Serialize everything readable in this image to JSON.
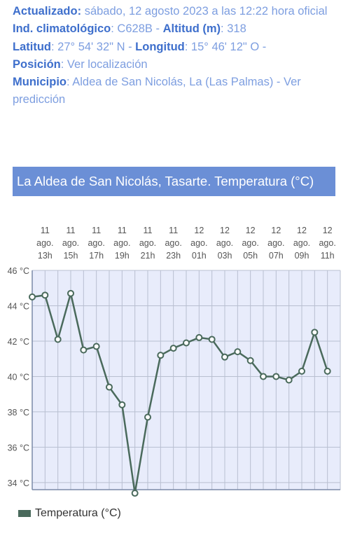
{
  "info": {
    "updated_label": "Actualizado:",
    "updated_value": "sábado, 12 agosto 2023 a las 12:22 hora oficial",
    "station_label": "Ind. climatológico",
    "station_value": ": C628B - ",
    "altitude_label": "Altitud (m)",
    "altitude_value": ": 318",
    "lat_label": "Latitud",
    "lat_value": ": 27° 54' 32\" N - ",
    "lon_label": "Longitud",
    "lon_value": ": 15° 46' 12\" O -",
    "position_label": "Posición",
    "position_value": ":   Ver localización",
    "municipality_label": "Municipio",
    "municipality_value": ":   Aldea de San Nicolás, La (Las Palmas) - Ver predicción"
  },
  "chart_title": "La Aldea de San Nicolás, Tasarte. Temperatura (°C)",
  "colors": {
    "accent": "#6b8fd6",
    "line": "#4a6a5c",
    "plot_bg": "#e8ecfb"
  },
  "chart_data": {
    "type": "line",
    "title": "La Aldea de San Nicolás, Tasarte. Temperatura (°C)",
    "x_tick_labels": [
      [
        "11",
        "ago.",
        "13h"
      ],
      [
        "11",
        "ago.",
        "15h"
      ],
      [
        "11",
        "ago.",
        "17h"
      ],
      [
        "11",
        "ago.",
        "19h"
      ],
      [
        "11",
        "ago.",
        "21h"
      ],
      [
        "11",
        "ago.",
        "23h"
      ],
      [
        "12",
        "ago.",
        "01h"
      ],
      [
        "12",
        "ago.",
        "03h"
      ],
      [
        "12",
        "ago.",
        "05h"
      ],
      [
        "12",
        "ago.",
        "07h"
      ],
      [
        "12",
        "ago.",
        "09h"
      ],
      [
        "12",
        "ago.",
        "11h"
      ]
    ],
    "y_tick_labels": [
      "34 °C",
      "36 °C",
      "38 °C",
      "40 °C",
      "42 °C",
      "44 °C",
      "46 °C"
    ],
    "ylim": [
      33.6,
      46
    ],
    "grid": true,
    "series": [
      {
        "name": "Temperatura (°C)",
        "x": [
          "11 ago. 12h",
          "11 ago. 13h",
          "11 ago. 14h",
          "11 ago. 15h",
          "11 ago. 16h",
          "11 ago. 17h",
          "11 ago. 18h",
          "11 ago. 19h",
          "11 ago. 20h",
          "11 ago. 21h",
          "11 ago. 22h",
          "11 ago. 23h",
          "12 ago. 00h",
          "12 ago. 01h",
          "12 ago. 02h",
          "12 ago. 03h",
          "12 ago. 04h",
          "12 ago. 05h",
          "12 ago. 06h",
          "12 ago. 07h",
          "12 ago. 08h",
          "12 ago. 09h",
          "12 ago. 10h",
          "12 ago. 11h"
        ],
        "values": [
          44.5,
          44.6,
          42.1,
          44.7,
          41.5,
          41.7,
          39.4,
          38.4,
          33.4,
          37.7,
          41.2,
          41.6,
          41.9,
          42.2,
          42.1,
          41.1,
          41.4,
          40.9,
          40.0,
          40.0,
          39.8,
          40.3,
          42.5,
          40.3
        ]
      }
    ],
    "legend": "bottom-left"
  }
}
